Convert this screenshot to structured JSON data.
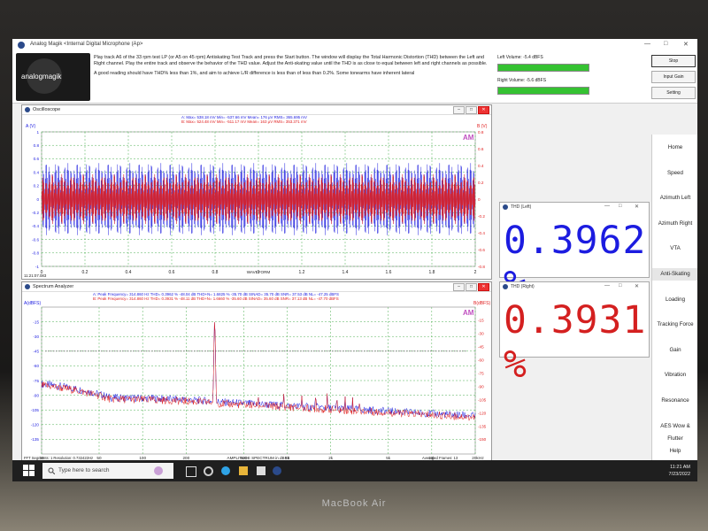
{
  "window": {
    "title": "Analog Magik       <Internal Digital Microphone (Ap>",
    "min": "—",
    "max": "□",
    "close": "✕"
  },
  "logo_text": "analogmagik",
  "instructions": {
    "p1": "Play track A6 of the 33 rpm test LP (or A5 on 45 rpm) Antiskating Test Track and press the Start button.   The window will display the Total Harmonic Distortion (THD) between the Left and Right channel.   Play the entire track and observe the behavior of the THD value.  Adjust the Anti-skating value until the THD is as close to equal between left and right channels as possible.",
    "p2": "A good reading should have THD% less than 1%, and aim to achieve L/R difference is less than of less than 0.2%.   Some tonearms have inherent lateral"
  },
  "volume": {
    "left_label": "Left Volume:  -5.4 dBFS",
    "left_level": 0.98,
    "right_label": "Right Volume:  -5.6 dBFS",
    "right_level": 0.98
  },
  "buttons": {
    "stop": "Stop",
    "input_gain": "Input Gain",
    "setting": "Setting"
  },
  "oscilloscope": {
    "title": "Oscilloscope",
    "ylabel_left": "A (V)",
    "ylabel_right": "B (V)",
    "stats": {
      "a": "A: Max=    538.18  mV  Min=    -537.66  mV   Mean=    176  μV  RMS=    365.695  mV",
      "b": "B: Max=    524.48  mV  Min=    -511.17  mV   Mean=    163  μV  RMS=    353.371  mV"
    },
    "am_badge": "AM",
    "yticks": [
      "1",
      "0.8",
      "0.6",
      "0.4",
      "0.2",
      "0",
      "-0.2",
      "-0.4",
      "-0.6",
      "-0.8",
      "-1"
    ],
    "yticks_right": [
      "0.8",
      "0.6",
      "0.4",
      "0.2",
      "0",
      "-0.2",
      "-0.4",
      "-0.6",
      "-0.8"
    ],
    "xticks": [
      "0",
      "0.2",
      "0.4",
      "0.6",
      "0.8",
      "1",
      "1.2",
      "1.4",
      "1.6",
      "1.8",
      "2"
    ],
    "xlabel": "WAVEFORM",
    "timestamp": "11:21:07.083"
  },
  "spectrum": {
    "title": "Spectrum Analyzer",
    "ylabel_left": "A(dBFS)",
    "ylabel_right": "B(dBFS)",
    "stats": {
      "a": "A: Peak Frequency=   314.860   Hz  THD=    0.3962 %    -48.04 dB   THD+N=    1.6825 %    -35.70 dB   SINAD=    35.70 dB   SNR=    37.53 dB   NL=    -47.25 dBFS",
      "b": "B: Peak Frequency=   314.860   Hz  THD=    0.3931 %    -48.11 dB   THD+N=    1.6660 %    -35.60 dB   SINAD=    35.60 dB   SNR=    37.13 dB   NL=    -47.70 dBFS"
    },
    "am_badge": "AM",
    "yticks": [
      "-15",
      "-30",
      "-45",
      "-60",
      "-75",
      "-90",
      "-105",
      "-120",
      "-135"
    ],
    "yticks_right": [
      "-15",
      "-30",
      "-45",
      "-60",
      "-75",
      "-90",
      "-105",
      "-120",
      "-135",
      "-150"
    ],
    "xticks": [
      "20",
      "50",
      "100",
      "200",
      "500",
      "1k",
      "2k",
      "5k",
      "10k",
      "20k"
    ],
    "xunit": "Hz",
    "xlabel": "AMPLITUDE SPECTRUM in dBFS",
    "footer_left": "FFT Segments: 1      Resolution: 0.732422Hz",
    "footer_right": "Averaged Frames: 13"
  },
  "thd_left": {
    "title": "THD (Left)",
    "value": "0.3962 %"
  },
  "thd_right": {
    "title": "THD (Right)",
    "value": "0.3931 %"
  },
  "nav": [
    "Home",
    "Speed",
    "Azimuth Left",
    "Azimuth Right",
    "VTA",
    "Anti-Skating",
    "Loading",
    "Tracking Force",
    "Gain",
    "Vibration",
    "Resonance",
    "AES Wow & Flutter",
    "Help",
    "Exit"
  ],
  "nav_active": 5,
  "taskbar": {
    "search_placeholder": "Type here to search",
    "time": "11:21 AM",
    "date": "7/23/2022"
  },
  "device_label": "MacBook Air",
  "colors": {
    "channel_a": "#1c1ce0",
    "channel_b": "#e01c1c",
    "volume_bar": "#35c232",
    "thd_left_text": "#1c1ce0",
    "thd_right_text": "#d42020"
  },
  "chart_data": [
    {
      "type": "line",
      "name": "oscilloscope",
      "title": "",
      "xlabel": "WAVEFORM",
      "xlim": [
        0,
        2
      ],
      "ylim": [
        -1,
        1
      ],
      "grid": true,
      "series": [
        {
          "name": "A",
          "max_mV": 538.18,
          "min_mV": -537.66,
          "rms_mV": 365.695
        },
        {
          "name": "B",
          "max_mV": 524.48,
          "min_mV": -511.17,
          "rms_mV": 353.371
        }
      ]
    },
    {
      "type": "line",
      "name": "spectrum",
      "title": "",
      "xlabel": "AMPLITUDE SPECTRUM in dBFS",
      "xscale": "log",
      "xlim": [
        20,
        20000
      ],
      "ylim": [
        -150,
        0
      ],
      "grid": true,
      "peak_frequency_hz": 314.86,
      "noise_floor_dbfs": -120,
      "harmonics_hz": [
        315,
        630,
        945,
        1260,
        1575,
        1890,
        2205,
        2520,
        2835,
        3150
      ],
      "harmonics_db": [
        -3,
        -86,
        -82,
        -88,
        -82,
        -87,
        -86,
        -90,
        -92,
        -95
      ]
    }
  ]
}
